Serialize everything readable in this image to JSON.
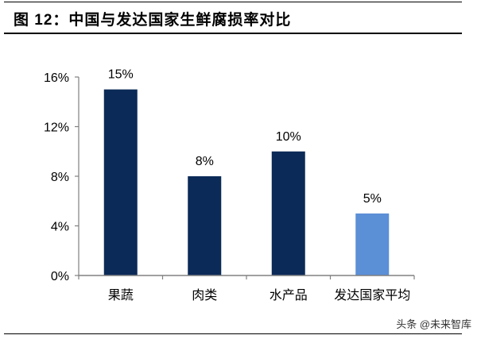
{
  "figure": {
    "title": "图 12：中国与发达国家生鲜腐损率对比",
    "watermark": "头条 @未来智库"
  },
  "colors": {
    "primary_bar": "#0b2a57",
    "highlight_bar": "#5b8fd6",
    "axis": "#808080"
  },
  "chart_data": {
    "type": "bar",
    "title": "中国与发达国家生鲜腐损率对比",
    "categories": [
      "果蔬",
      "肉类",
      "水产品",
      "发达国家平均"
    ],
    "values": [
      15,
      8,
      10,
      5
    ],
    "value_labels": [
      "15%",
      "8%",
      "10%",
      "5%"
    ],
    "bar_colors": [
      "#0b2a57",
      "#0b2a57",
      "#0b2a57",
      "#5b8fd6"
    ],
    "xlabel": "",
    "ylabel": "",
    "ylim": [
      0,
      16
    ],
    "yticks": [
      0,
      4,
      8,
      12,
      16
    ],
    "ytick_labels": [
      "0%",
      "4%",
      "8%",
      "12%",
      "16%"
    ],
    "grid": false,
    "legend": null
  }
}
